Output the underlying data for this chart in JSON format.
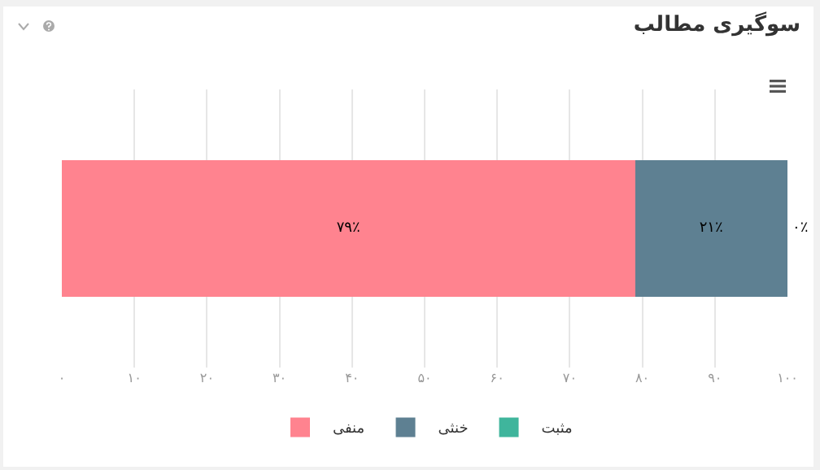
{
  "chart_data": {
    "type": "bar",
    "title": "سوگیری مطالب",
    "orientation": "horizontal",
    "stacked": true,
    "categories": [
      null
    ],
    "series": [
      {
        "name": "منفی",
        "color": "#ff838f",
        "values": [
          79
        ],
        "value_labels": [
          "۷۹٪"
        ]
      },
      {
        "name": "خنثی",
        "color": "#5e8092",
        "values": [
          21
        ],
        "value_labels": [
          "۲۱٪"
        ]
      },
      {
        "name": "مثبت",
        "color": "#3fb59c",
        "values": [
          0
        ],
        "value_labels": [
          "۰٪"
        ]
      }
    ],
    "xlim": [
      0,
      100
    ],
    "xticks": [
      {
        "value": 0,
        "label": "۰"
      },
      {
        "value": 10,
        "label": "۱۰"
      },
      {
        "value": 20,
        "label": "۲۰"
      },
      {
        "value": 30,
        "label": "۳۰"
      },
      {
        "value": 40,
        "label": "۴۰"
      },
      {
        "value": 50,
        "label": "۵۰"
      },
      {
        "value": 60,
        "label": "۶۰"
      },
      {
        "value": 70,
        "label": "۷۰"
      },
      {
        "value": 80,
        "label": "۸۰"
      },
      {
        "value": 90,
        "label": "۹۰"
      },
      {
        "value": 100,
        "label": "۱۰۰"
      }
    ],
    "grid": "x",
    "legend": "bottom"
  }
}
